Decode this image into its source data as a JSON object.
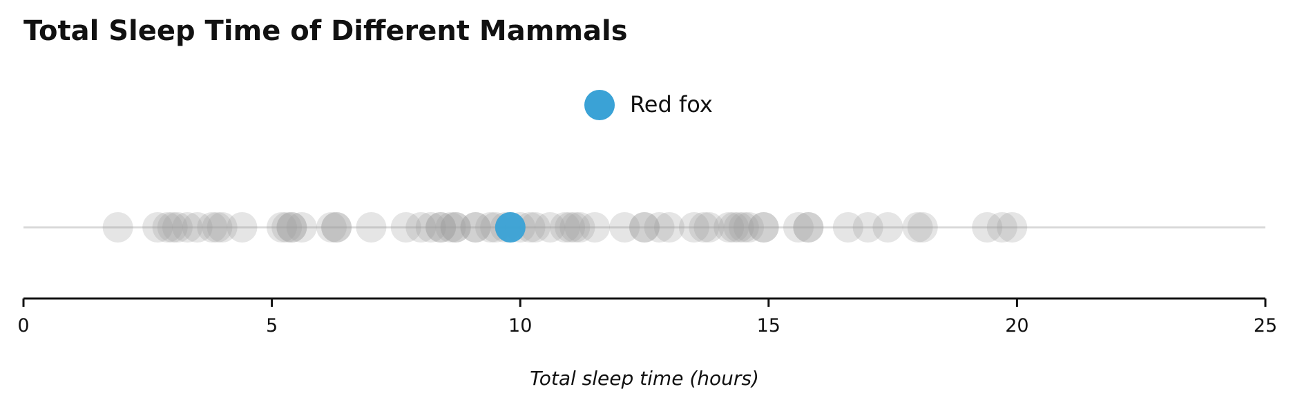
{
  "chart_data": {
    "type": "scatter",
    "title": "Total Sleep Time of Different Mammals",
    "xlabel": "Total sleep time (hours)",
    "ylabel": "",
    "xlim": [
      0,
      25
    ],
    "xticks": [
      0,
      5,
      10,
      15,
      20,
      25
    ],
    "grid": false,
    "legend": {
      "position": "top",
      "entries": [
        {
          "label": "Red fox",
          "color": "#3aa2d6"
        }
      ]
    },
    "colors": {
      "background_points": "#999999",
      "highlight": "#3aa2d6",
      "baseline": "#d9d9d9",
      "axis": "#111111"
    },
    "series": [
      {
        "name": "",
        "values": [
          1.9,
          2.7,
          2.9,
          3.0,
          3.1,
          3.3,
          3.5,
          3.8,
          3.9,
          4.0,
          4.4,
          5.2,
          5.3,
          5.4,
          5.4,
          5.6,
          6.2,
          6.3,
          6.3,
          7.0,
          7.7,
          8.0,
          8.2,
          8.4,
          8.4,
          8.6,
          8.7,
          8.7,
          9.1,
          9.1,
          9.4,
          9.5,
          9.7,
          9.8,
          10.0,
          10.2,
          10.3,
          10.6,
          10.9,
          11.0,
          11.1,
          11.2,
          11.5,
          12.1,
          12.5,
          12.5,
          12.8,
          13.0,
          13.5,
          13.7,
          13.8,
          14.2,
          14.3,
          14.4,
          14.5,
          14.6,
          14.9,
          14.9,
          15.6,
          15.8,
          15.8,
          16.6,
          17.0,
          17.4,
          18.0,
          18.1,
          19.4,
          19.7,
          19.9
        ]
      },
      {
        "name": "Red fox",
        "values": [
          9.8
        ]
      }
    ]
  }
}
